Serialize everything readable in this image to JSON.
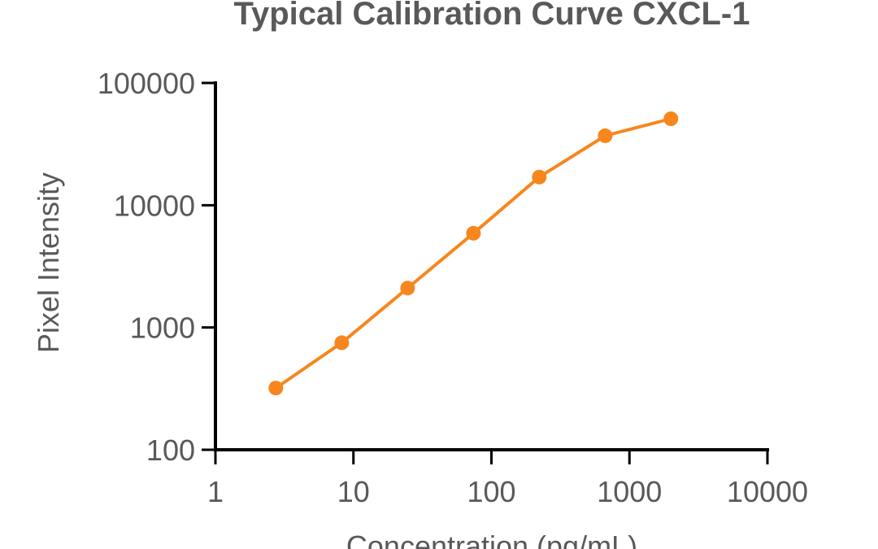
{
  "chart_data": {
    "type": "line",
    "title": "Typical Calibration Curve CXCL-1",
    "xlabel": "Concentration (pg/mL)",
    "ylabel": "Pixel Intensity",
    "x_scale": "log",
    "y_scale": "log",
    "xlim": [
      1,
      10000
    ],
    "ylim": [
      100,
      100000
    ],
    "x_ticks": [
      "1",
      "10",
      "100",
      "1000",
      "10000"
    ],
    "y_ticks": [
      "100",
      "1000",
      "10000",
      "100000"
    ],
    "grid": false,
    "series": [
      {
        "color": "#f7861e",
        "x": [
          2.74,
          8.23,
          24.7,
          74.1,
          222,
          667,
          2000
        ],
        "y": [
          320,
          750,
          2100,
          5900,
          17000,
          37000,
          51000
        ]
      }
    ]
  }
}
